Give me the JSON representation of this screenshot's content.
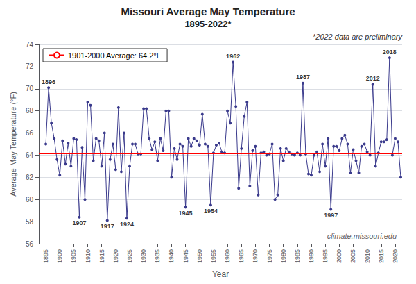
{
  "chart_data": {
    "type": "line",
    "title": "Missouri Average May Temperature",
    "subtitle": "1895-2022*",
    "x_label": "Year",
    "y_label": "Average May Temperature (°F)",
    "x": [
      1895,
      1896,
      1897,
      1898,
      1899,
      1900,
      1901,
      1902,
      1903,
      1904,
      1905,
      1906,
      1907,
      1908,
      1909,
      1910,
      1911,
      1912,
      1913,
      1914,
      1915,
      1916,
      1917,
      1918,
      1919,
      1920,
      1921,
      1922,
      1923,
      1924,
      1925,
      1926,
      1927,
      1928,
      1929,
      1930,
      1931,
      1932,
      1933,
      1934,
      1935,
      1936,
      1937,
      1938,
      1939,
      1940,
      1941,
      1942,
      1943,
      1944,
      1945,
      1946,
      1947,
      1948,
      1949,
      1950,
      1951,
      1952,
      1953,
      1954,
      1955,
      1956,
      1957,
      1958,
      1959,
      1960,
      1961,
      1962,
      1963,
      1964,
      1965,
      1966,
      1967,
      1968,
      1969,
      1970,
      1971,
      1972,
      1973,
      1974,
      1975,
      1976,
      1977,
      1978,
      1979,
      1980,
      1981,
      1982,
      1983,
      1984,
      1985,
      1986,
      1987,
      1988,
      1989,
      1990,
      1991,
      1992,
      1993,
      1994,
      1995,
      1996,
      1997,
      1998,
      1999,
      2000,
      2001,
      2002,
      2003,
      2004,
      2005,
      2006,
      2007,
      2008,
      2009,
      2010,
      2011,
      2012,
      2013,
      2014,
      2015,
      2016,
      2017,
      2018,
      2019,
      2020,
      2021,
      2022
    ],
    "values": [
      65.0,
      70.1,
      66.9,
      65.5,
      63.6,
      62.2,
      65.3,
      63.2,
      65.1,
      63.0,
      65.5,
      65.4,
      58.4,
      64.7,
      60.0,
      68.8,
      68.5,
      63.5,
      65.5,
      65.3,
      63.0,
      66.0,
      58.1,
      63.6,
      65.0,
      62.7,
      68.3,
      62.5,
      66.0,
      58.3,
      63.0,
      65.0,
      65.0,
      64.1,
      64.1,
      68.2,
      68.2,
      65.5,
      64.5,
      65.2,
      63.5,
      65.5,
      64.4,
      68.0,
      68.0,
      62.0,
      64.6,
      63.6,
      65.0,
      64.8,
      59.3,
      65.5,
      64.8,
      65.5,
      65.3,
      64.9,
      67.7,
      65.0,
      64.8,
      59.5,
      64.2,
      64.9,
      65.1,
      64.3,
      64.2,
      68.0,
      66.9,
      72.4,
      68.4,
      61.0,
      64.6,
      67.5,
      68.8,
      61.2,
      64.4,
      64.8,
      60.4,
      64.2,
      64.3,
      64.0,
      64.1,
      65.0,
      60.0,
      60.4,
      64.6,
      63.5,
      64.6,
      64.3,
      64.1,
      64.0,
      64.2,
      64.0,
      70.5,
      64.1,
      62.3,
      62.2,
      64.0,
      64.3,
      62.5,
      65.0,
      63.0,
      65.5,
      59.1,
      64.8,
      64.8,
      64.4,
      65.5,
      65.8,
      65.0,
      62.4,
      64.5,
      63.5,
      62.4,
      64.8,
      65.0,
      64.3,
      64.0,
      70.4,
      63.0,
      64.2,
      65.2,
      65.2,
      65.4,
      72.8,
      64.0,
      65.5,
      65.2,
      62.0
    ],
    "color": "#3a3a8c",
    "marker": "circle",
    "xlim": [
      1892.5,
      2022.5
    ],
    "xticks": [
      1895,
      1900,
      1905,
      1910,
      1915,
      1920,
      1925,
      1930,
      1935,
      1940,
      1945,
      1950,
      1955,
      1960,
      1965,
      1970,
      1975,
      1980,
      1985,
      1990,
      1995,
      2000,
      2005,
      2010,
      2015,
      2020
    ],
    "ylim": [
      56,
      74
    ],
    "yticks": [
      56,
      58,
      60,
      62,
      64,
      66,
      68,
      70,
      72,
      74
    ],
    "grid": "y",
    "legend": "upper left",
    "hline": {
      "value": 64.2,
      "label": "1901-2000 Average: 64.2°F",
      "color": "#ff0000"
    },
    "annotations": [
      {
        "text": "1896",
        "x": 1896,
        "y": 70.1
      },
      {
        "text": "1907",
        "x": 1907,
        "y": 58.4
      },
      {
        "text": "1917",
        "x": 1917,
        "y": 58.1
      },
      {
        "text": "1924",
        "x": 1924,
        "y": 58.3
      },
      {
        "text": "1945",
        "x": 1945,
        "y": 59.3
      },
      {
        "text": "1954",
        "x": 1954,
        "y": 59.5
      },
      {
        "text": "1962",
        "x": 1962,
        "y": 72.4
      },
      {
        "text": "1987",
        "x": 1987,
        "y": 70.5
      },
      {
        "text": "1997",
        "x": 1997,
        "y": 59.1
      },
      {
        "text": "2012",
        "x": 2012,
        "y": 70.4
      },
      {
        "text": "2018",
        "x": 2018,
        "y": 72.8
      }
    ],
    "notes": [
      "*2022 data are preliminary",
      "climate.missouri.edu"
    ]
  }
}
